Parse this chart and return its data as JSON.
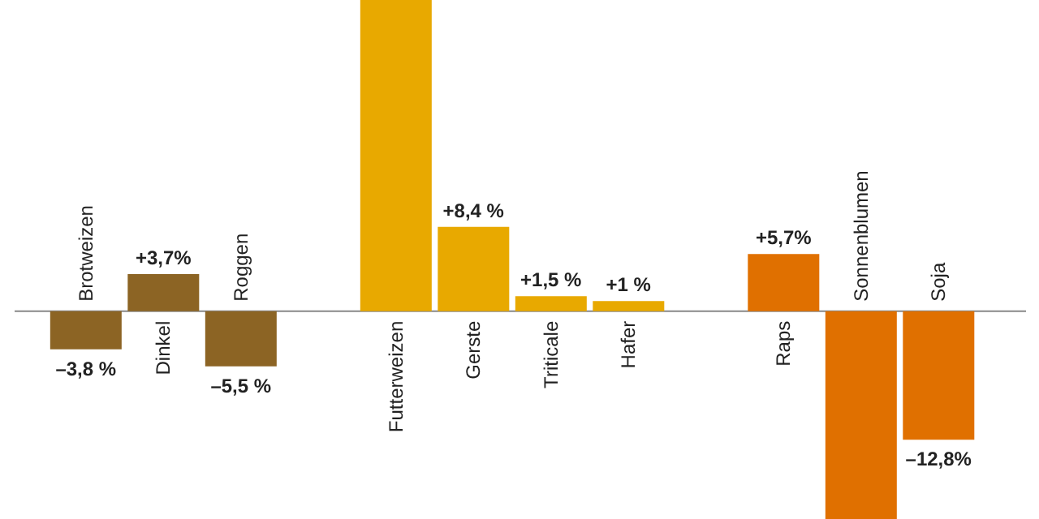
{
  "chart_data": {
    "type": "bar",
    "categories": [
      "Brotweizen",
      "Dinkel",
      "Roggen",
      null,
      "Futterweizen",
      "Gerste",
      "Triticale",
      "Hafer",
      null,
      "Raps",
      "Sonnenblumen",
      "Soja"
    ],
    "values": [
      -3.8,
      3.7,
      -5.5,
      null,
      31,
      8.4,
      1.5,
      1,
      null,
      5.7,
      -20.7,
      -12.8
    ],
    "colors": [
      "#8c6424",
      "#8c6424",
      "#8c6424",
      null,
      "#e8a900",
      "#e8a900",
      "#e8a900",
      "#e8a900",
      null,
      "#e07000",
      "#e07000",
      "#e07000"
    ],
    "value_labels": [
      "–3,8 %",
      "+3,7%",
      "–5,5 %",
      null,
      null,
      "+8,4 %",
      "+1,5 %",
      "+1 %",
      null,
      "+5,7%",
      null,
      "–12,8%"
    ],
    "ylim": [
      -20.7,
      31
    ],
    "grid": false,
    "legend": false
  }
}
